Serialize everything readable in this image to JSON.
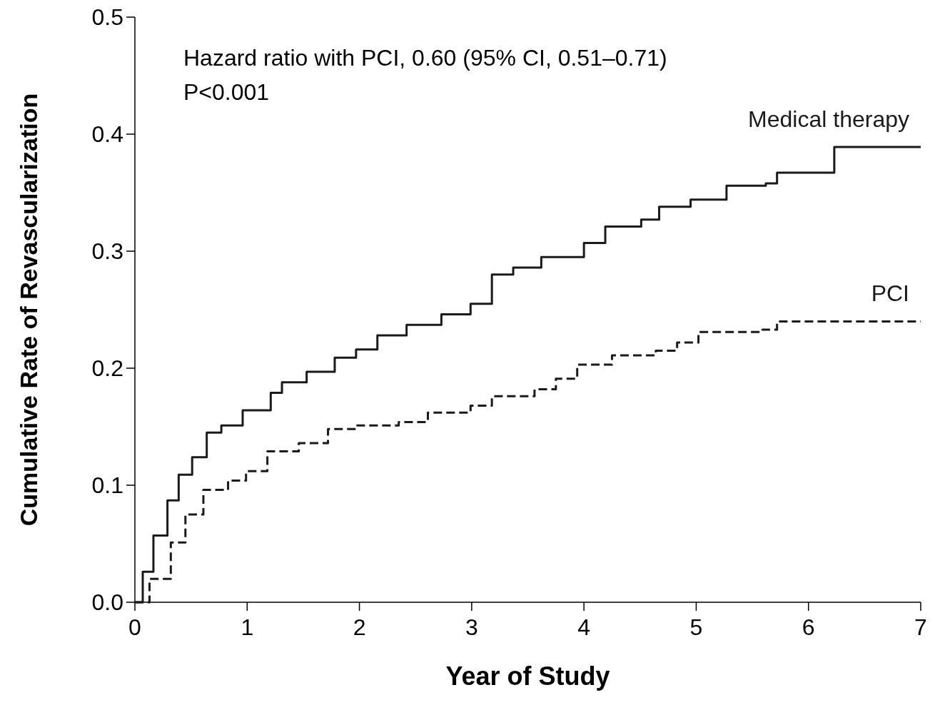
{
  "chart_data": {
    "type": "step",
    "xlabel": "Year of Study",
    "ylabel": "Cumulative Rate of Revascularization",
    "xlim": [
      0,
      7
    ],
    "ylim": [
      0,
      0.5
    ],
    "xticks": [
      0,
      1,
      2,
      3,
      4,
      5,
      6,
      7
    ],
    "yticks": [
      {
        "value": 0,
        "label": "0.0"
      },
      0.1,
      0.2,
      0.3,
      0.4,
      0.5
    ],
    "grid": false,
    "annotations": [
      "Hazard ratio with PCI, 0.60 (95% CI, 0.51–0.71)",
      "P<0.001"
    ],
    "series": [
      {
        "name": "Medical therapy",
        "color": "#1a1a1a",
        "line_style": "solid",
        "x": [
          0,
          0.07,
          0.165,
          0.29,
          0.39,
          0.51,
          0.64,
          0.77,
          0.96,
          1.21,
          1.31,
          1.53,
          1.78,
          1.97,
          2.16,
          2.42,
          2.73,
          2.99,
          3.18,
          3.37,
          3.62,
          4.0,
          4.19,
          4.51,
          4.67,
          4.95,
          5.27,
          5.62,
          5.72,
          6.23,
          7.0
        ],
        "values": [
          0,
          0.026,
          0.057,
          0.087,
          0.109,
          0.124,
          0.145,
          0.151,
          0.164,
          0.179,
          0.188,
          0.197,
          0.209,
          0.216,
          0.228,
          0.237,
          0.246,
          0.255,
          0.28,
          0.286,
          0.295,
          0.307,
          0.321,
          0.327,
          0.338,
          0.344,
          0.356,
          0.358,
          0.367,
          0.389,
          0.389
        ]
      },
      {
        "name": "PCI",
        "color": "#1a1a1a",
        "line_style": "dashed",
        "x": [
          0,
          0.13,
          0.32,
          0.45,
          0.61,
          0.83,
          0.99,
          1.18,
          1.46,
          1.72,
          1.97,
          2.35,
          2.61,
          2.99,
          3.18,
          3.56,
          3.75,
          3.94,
          4.25,
          4.64,
          4.83,
          5.02,
          5.59,
          5.72,
          7.0
        ],
        "values": [
          0,
          0.02,
          0.051,
          0.075,
          0.096,
          0.104,
          0.112,
          0.129,
          0.136,
          0.148,
          0.151,
          0.154,
          0.162,
          0.168,
          0.176,
          0.182,
          0.191,
          0.203,
          0.211,
          0.215,
          0.222,
          0.231,
          0.233,
          0.24,
          0.24
        ]
      }
    ]
  }
}
